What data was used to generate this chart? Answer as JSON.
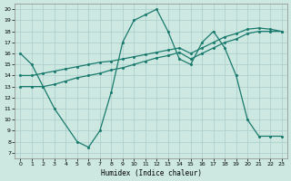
{
  "xlabel": "Humidex (Indice chaleur)",
  "bg_color": "#cce8e0",
  "line_color": "#1a7a6e",
  "grid_color": "#aacccc",
  "xlim": [
    -0.5,
    23.5
  ],
  "ylim": [
    6.5,
    20.5
  ],
  "xticks": [
    0,
    1,
    2,
    3,
    4,
    5,
    6,
    7,
    8,
    9,
    10,
    11,
    12,
    13,
    14,
    15,
    16,
    17,
    18,
    19,
    20,
    21,
    22,
    23
  ],
  "yticks": [
    7,
    8,
    9,
    10,
    11,
    12,
    13,
    14,
    15,
    16,
    17,
    18,
    19,
    20
  ],
  "line1_x": [
    0,
    1,
    2,
    3,
    5,
    6,
    7,
    8,
    9,
    10,
    11,
    12,
    13,
    14,
    15,
    16,
    17,
    18,
    19,
    20,
    21,
    22,
    23
  ],
  "line1_y": [
    16,
    15,
    13,
    11,
    8,
    7.5,
    9,
    12.5,
    17,
    19,
    19.5,
    20,
    18,
    15.5,
    15,
    17,
    18,
    16.5,
    14,
    10,
    8.5,
    8.5,
    8.5
  ],
  "line2_x": [
    0,
    1,
    2,
    3,
    4,
    5,
    6,
    7,
    8,
    9,
    10,
    11,
    12,
    13,
    14,
    15,
    16,
    17,
    18,
    19,
    20,
    21,
    22,
    23
  ],
  "line2_y": [
    13,
    13,
    13,
    13.2,
    13.5,
    13.8,
    14.0,
    14.2,
    14.5,
    14.7,
    15.0,
    15.3,
    15.6,
    15.8,
    16.1,
    15.5,
    16.0,
    16.5,
    17.0,
    17.3,
    17.8,
    18.0,
    18.0,
    18.0
  ],
  "line3_x": [
    0,
    1,
    2,
    3,
    4,
    5,
    6,
    7,
    8,
    9,
    10,
    11,
    12,
    13,
    14,
    15,
    16,
    17,
    18,
    19,
    20,
    21,
    22,
    23
  ],
  "line3_y": [
    14.0,
    14.0,
    14.2,
    14.4,
    14.6,
    14.8,
    15.0,
    15.2,
    15.3,
    15.5,
    15.7,
    15.9,
    16.1,
    16.3,
    16.5,
    16.0,
    16.5,
    17.0,
    17.5,
    17.8,
    18.2,
    18.3,
    18.2,
    18.0
  ]
}
